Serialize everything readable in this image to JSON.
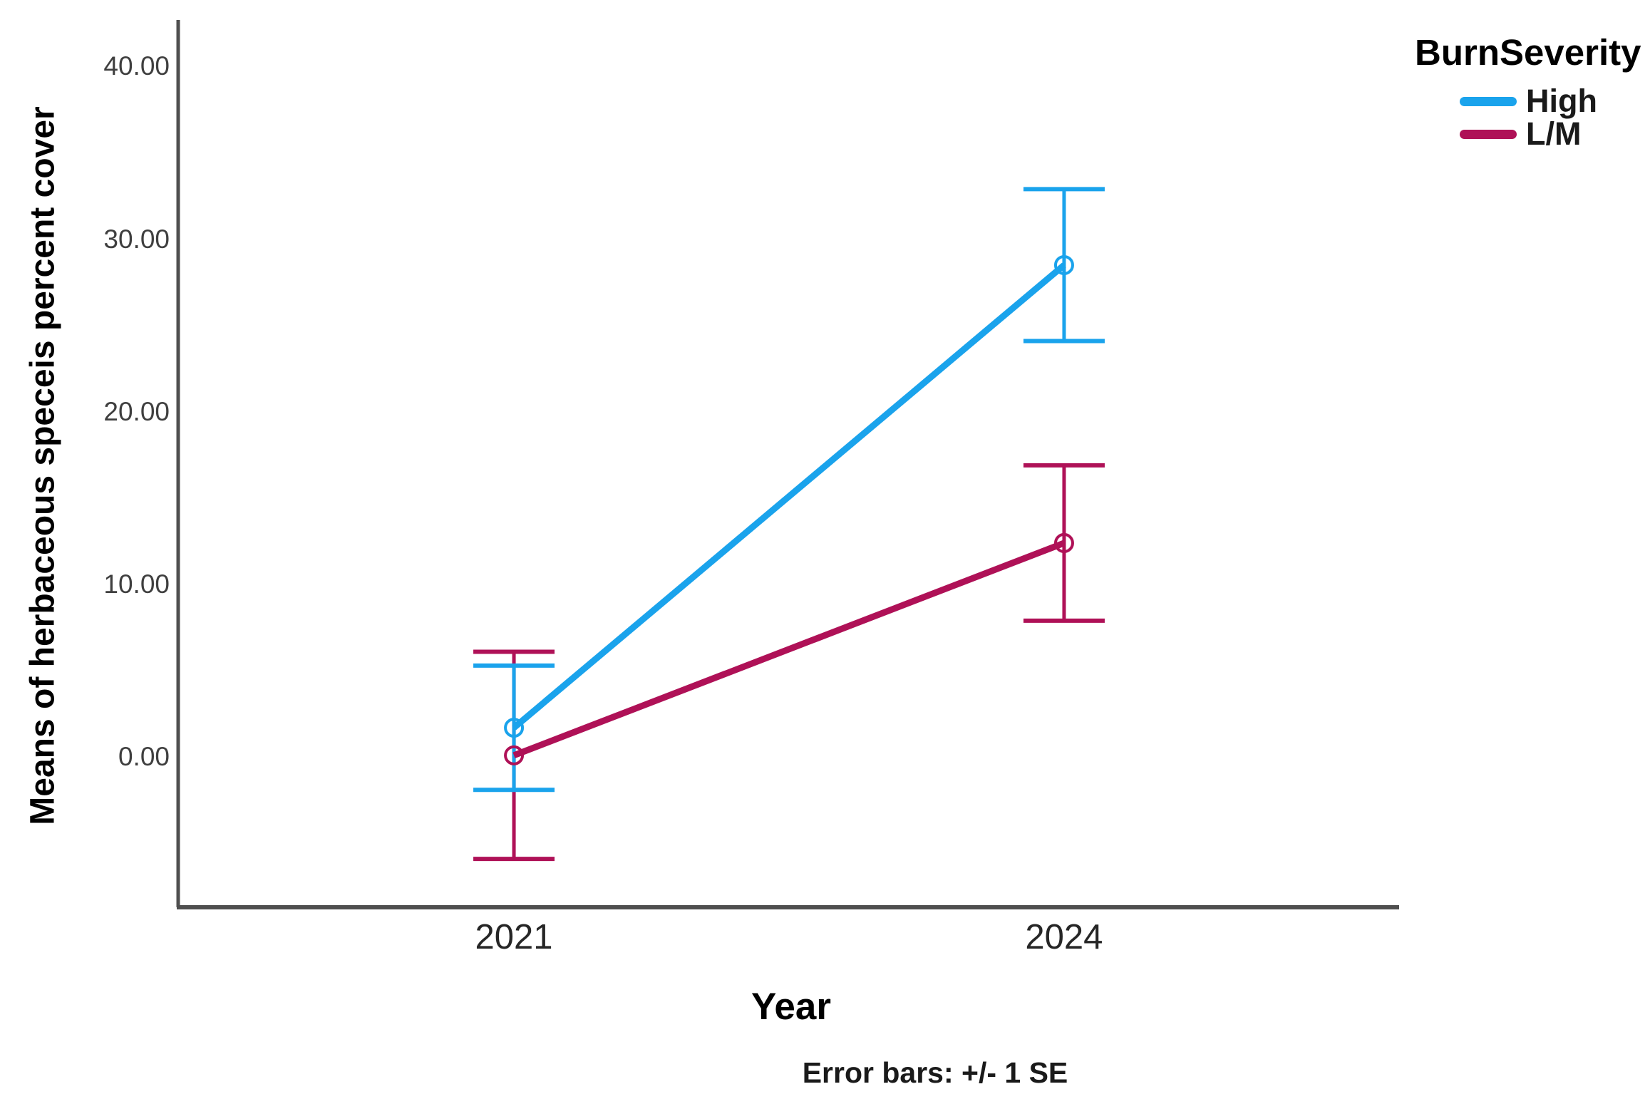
{
  "chart_data": {
    "type": "line",
    "categories": [
      "2021",
      "2024"
    ],
    "series": [
      {
        "name": "High",
        "color": "#1AA3EC",
        "means": [
          1.7,
          28.5
        ],
        "se": [
          3.6,
          4.4
        ]
      },
      {
        "name": "L/M",
        "color": "#AF1157",
        "means": [
          0.1,
          12.4
        ],
        "se": [
          6.0,
          4.5
        ]
      }
    ],
    "title": "",
    "xlabel": "Year",
    "ylabel": "Means of herbaceous speceis percent cover",
    "y_tick_values": [
      0,
      10,
      20,
      30,
      40
    ],
    "y_tick_labels": [
      "0.00",
      "10.00",
      "20.00",
      "30.00",
      "40.00"
    ],
    "ylim": [
      -8.7,
      42.7
    ],
    "grid": false,
    "marker": "open-circle",
    "error_bars": "+/- 1 SE",
    "caption": "Error bars: +/- 1 SE",
    "legend": {
      "title": "BurnSeverity",
      "position": "top-right",
      "entries": [
        "High",
        "L/M"
      ]
    }
  }
}
